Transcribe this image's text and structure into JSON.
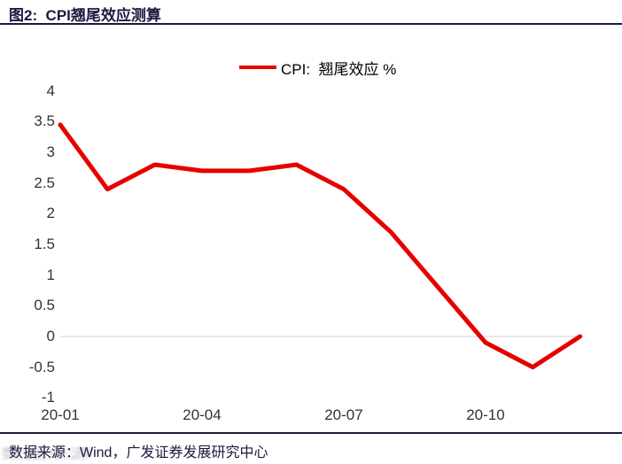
{
  "header": {
    "title": "图2:  CPI翘尾效应测算"
  },
  "legend": {
    "label": "CPI:  翘尾效应 %"
  },
  "footer": {
    "source": "数据来源：Wind，广发证券发展研究中心",
    "watermark": "数据来源"
  },
  "colors": {
    "line_red": "#e60000",
    "heading_navy": "#1a1a40",
    "zero_gridline": "#d9d9d9",
    "tick_text": "#333333"
  },
  "chart_data": {
    "type": "line",
    "title": "CPI翘尾效应测算",
    "categories": [
      "20-01",
      "20-02",
      "20-03",
      "20-04",
      "20-05",
      "20-06",
      "20-07",
      "20-08",
      "20-09",
      "20-10",
      "20-11",
      "20-12"
    ],
    "series": [
      {
        "name": "CPI: 翘尾效应 %",
        "color": "#e60000",
        "values": [
          3.45,
          2.4,
          2.8,
          2.7,
          2.7,
          2.8,
          2.4,
          1.7,
          0.8,
          -0.1,
          -0.5,
          0.0
        ]
      }
    ],
    "xlabel": "",
    "ylabel": "",
    "ylim": [
      -1,
      4
    ],
    "y_ticks": [
      4,
      3.5,
      3,
      2.5,
      2,
      1.5,
      1,
      0.5,
      0,
      -0.5,
      -1
    ],
    "y_tick_labels": [
      "4",
      "3.5",
      "3",
      "2.5",
      "2",
      "1.5",
      "1",
      "0.5",
      "0",
      "-0.5",
      "-1"
    ],
    "x_tick_months": [
      0,
      3,
      6,
      9
    ],
    "x_tick_labels": [
      "20-01",
      "20-04",
      "20-07",
      "20-10"
    ],
    "grid": "horizontal zero line only",
    "legend_position": "top-center"
  }
}
